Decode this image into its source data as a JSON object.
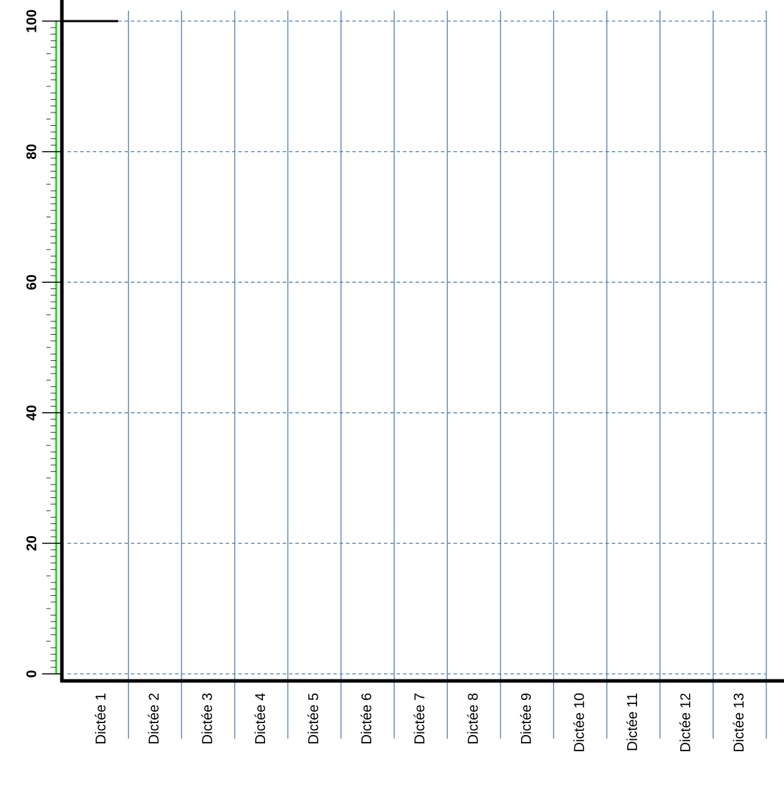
{
  "chart_data": {
    "type": "bar",
    "categories": [
      "Dictée 1",
      "Dictée 2",
      "Dictée 3",
      "Dictée 4",
      "Dictée 5",
      "Dictée 6",
      "Dictée 7",
      "Dictée 8",
      "Dictée 9",
      "Dictée 10",
      "Dictée 11",
      "Dictée 12",
      "Dictée 13"
    ],
    "ylim": [
      0,
      100
    ],
    "yticks": [
      0,
      20,
      40,
      60,
      80,
      100
    ],
    "grid": true,
    "grid_color": "#4a7ebb",
    "axis_color": "#000000",
    "ruler_color": "#22dd22"
  }
}
